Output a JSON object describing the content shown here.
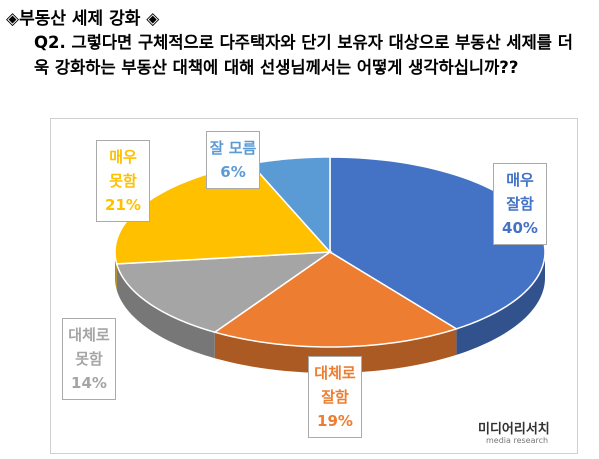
{
  "header": {
    "title": "◈부동산 세제 강화 ◈",
    "question": "Q2. 그렇다면 구체적으로 다주택자와 단기 보유자 대상으로 부동산 세제를 더욱 강화하는 부동산 대책에 대해 선생님께서는 어떻게 생각하십니까??"
  },
  "chart_data": {
    "type": "pie",
    "categories": [
      "매우 잘함",
      "대체로 잘함",
      "대체로 못함",
      "매우 못함",
      "잘 모름"
    ],
    "values": [
      40,
      19,
      14,
      21,
      6
    ],
    "value_labels": [
      "40%",
      "19%",
      "14%",
      "21%",
      "6%"
    ],
    "colors": [
      "#4472c4",
      "#ed7d31",
      "#a5a5a5",
      "#ffc000",
      "#5b9bd5"
    ]
  },
  "logo": {
    "name": "미디어리서치",
    "sub": "media research"
  }
}
